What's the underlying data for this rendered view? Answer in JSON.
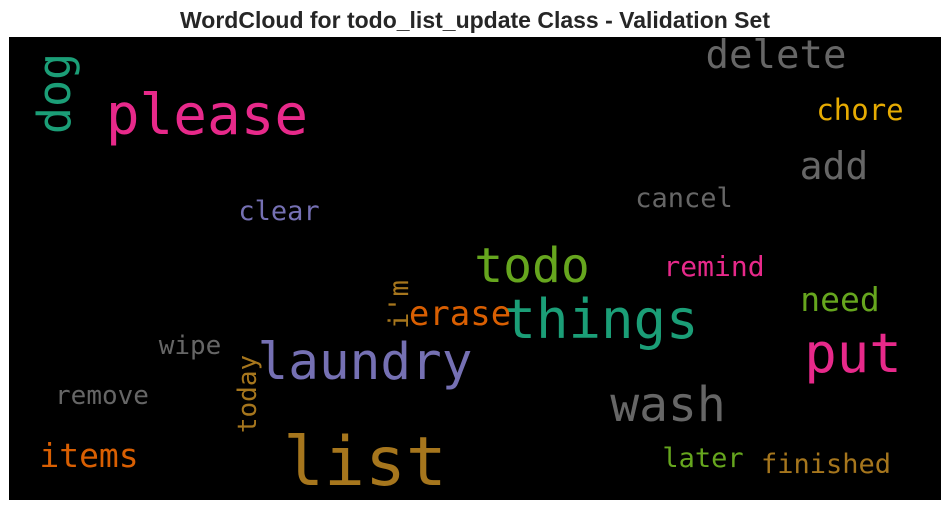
{
  "chart_data": {
    "type": "wordcloud",
    "title": "WordCloud for todo_list_update Class - Validation Set",
    "words": [
      {
        "text": "list",
        "weight": 100,
        "color": "#a6761d",
        "rotated": false
      },
      {
        "text": "please",
        "weight": 80,
        "color": "#e7298a",
        "rotated": false
      },
      {
        "text": "things",
        "weight": 76,
        "color": "#1b9e77",
        "rotated": false
      },
      {
        "text": "laundry",
        "weight": 70,
        "color": "#7570b3",
        "rotated": false
      },
      {
        "text": "put",
        "weight": 75,
        "color": "#e7298a",
        "rotated": false
      },
      {
        "text": "todo",
        "weight": 66,
        "color": "#66a61e",
        "rotated": false
      },
      {
        "text": "wash",
        "weight": 65,
        "color": "#666666",
        "rotated": false
      },
      {
        "text": "dog",
        "weight": 60,
        "color": "#1b9e77",
        "rotated": true
      },
      {
        "text": "delete",
        "weight": 50,
        "color": "#666666",
        "rotated": false
      },
      {
        "text": "add",
        "weight": 48,
        "color": "#666666",
        "rotated": false
      },
      {
        "text": "erase",
        "weight": 42,
        "color": "#d95f02",
        "rotated": false
      },
      {
        "text": "need",
        "weight": 40,
        "color": "#66a61e",
        "rotated": false
      },
      {
        "text": "items",
        "weight": 40,
        "color": "#d95f02",
        "rotated": false
      },
      {
        "text": "chore",
        "weight": 32,
        "color": "#e6ab02",
        "rotated": false
      },
      {
        "text": "remind",
        "weight": 31,
        "color": "#e7298a",
        "rotated": false
      },
      {
        "text": "cancel",
        "weight": 30,
        "color": "#666666",
        "rotated": false
      },
      {
        "text": "clear",
        "weight": 30,
        "color": "#7570b3",
        "rotated": false
      },
      {
        "text": "finished",
        "weight": 30,
        "color": "#a6761d",
        "rotated": false
      },
      {
        "text": "later",
        "weight": 30,
        "color": "#66a61e",
        "rotated": false
      },
      {
        "text": "i'm",
        "weight": 29,
        "color": "#a6761d",
        "rotated": true
      },
      {
        "text": "wipe",
        "weight": 28,
        "color": "#666666",
        "rotated": false
      },
      {
        "text": "remove",
        "weight": 28,
        "color": "#666666",
        "rotated": false
      },
      {
        "text": "today",
        "weight": 28,
        "color": "#a6761d",
        "rotated": true
      }
    ]
  }
}
